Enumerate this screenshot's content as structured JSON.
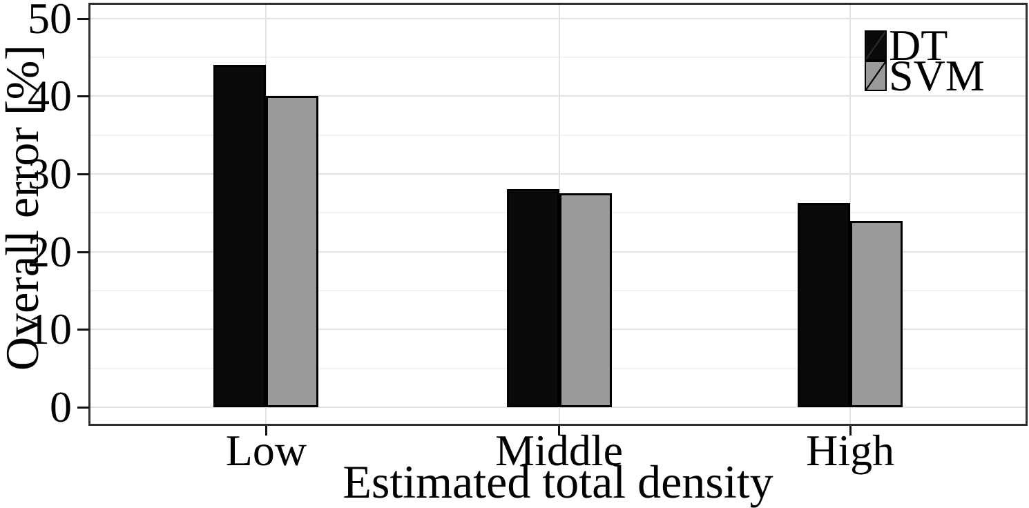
{
  "chart_data": {
    "type": "bar",
    "categories": [
      "Low",
      "Middle",
      "High"
    ],
    "series": [
      {
        "name": "DT",
        "color": "#0a0a0a",
        "values": [
          44,
          28,
          26.3
        ]
      },
      {
        "name": "SVM",
        "color": "#9a9a9a",
        "values": [
          40,
          27.5,
          24
        ]
      }
    ],
    "title": "",
    "xlabel": "Estimated total density",
    "ylabel": "Overall error [%]",
    "ylim": [
      0,
      50
    ],
    "yticks": [
      0,
      10,
      20,
      30,
      40,
      50
    ],
    "yticks_minor": [
      5,
      15,
      25,
      35,
      45
    ],
    "grid": "major+minor horizontal, major vertical at category centers",
    "legend_position": "top-right-inside",
    "colors": {
      "bar_outline": "#000000",
      "panel_border": "#2e2e2e",
      "grid_major": "#e2e2e2",
      "grid_minor": "#f3f3f3",
      "tick": "#111111",
      "background": "#ffffff"
    }
  }
}
